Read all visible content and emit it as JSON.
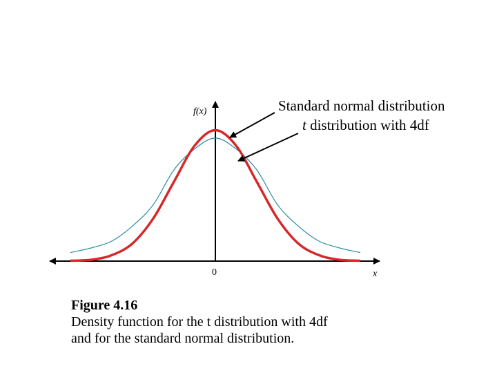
{
  "chart_data": {
    "type": "line",
    "title": "",
    "xlabel": "x",
    "ylabel": "f(x)",
    "x_ticks": [
      "0"
    ],
    "xlim": [
      -4,
      4
    ],
    "ylim": [
      0,
      0.45
    ],
    "grid": false,
    "legend": "annotations",
    "series": [
      {
        "name": "Standard normal distribution",
        "color": "#d62828",
        "x": [
          -3.5,
          -3.0,
          -2.5,
          -2.0,
          -1.5,
          -1.0,
          -0.5,
          0.0,
          0.5,
          1.0,
          1.5,
          2.0,
          2.5,
          3.0,
          3.5
        ],
        "y": [
          0.001,
          0.004,
          0.018,
          0.054,
          0.13,
          0.242,
          0.352,
          0.399,
          0.352,
          0.242,
          0.13,
          0.054,
          0.018,
          0.004,
          0.001
        ]
      },
      {
        "name": "t distribution with 4df",
        "color": "#2a8aa0",
        "x": [
          -3.5,
          -3.0,
          -2.5,
          -2.0,
          -1.5,
          -1.0,
          -0.5,
          0.0,
          0.5,
          1.0,
          1.5,
          2.0,
          2.5,
          3.0,
          3.5
        ],
        "y": [
          0.026,
          0.04,
          0.061,
          0.107,
          0.172,
          0.278,
          0.342,
          0.375,
          0.342,
          0.278,
          0.172,
          0.107,
          0.061,
          0.04,
          0.026
        ]
      }
    ],
    "annotations": [
      {
        "text": "Standard normal distribution",
        "target": "Standard normal distribution"
      },
      {
        "text_italic": "t",
        "text": " distribution with 4df",
        "target": "t distribution with 4df"
      }
    ]
  },
  "caption": {
    "title": "Figure 4.16",
    "line1": "Density function for the t distribution with 4df",
    "line2": "and for the standard normal distribution."
  },
  "colors": {
    "axis": "#000000",
    "normal": "#d62828",
    "t": "#2a8aa0"
  }
}
